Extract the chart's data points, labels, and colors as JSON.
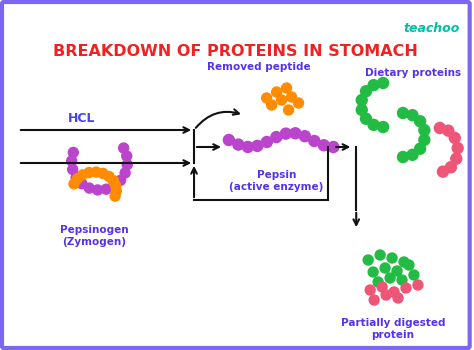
{
  "title": "BREAKDOWN OF PROTEINS IN STOMACH",
  "title_color": "#EE2222",
  "title_fontsize": 11.5,
  "brand": "teachoo",
  "brand_color": "#00BFA5",
  "background_color": "#FFFFFF",
  "border_color": "#7B68EE",
  "hcl_label": "HCL",
  "hcl_color": "#4444EE",
  "pepsinogen_label": "Pepsinogen\n(Zymogen)",
  "removed_peptide_label": "Removed peptide",
  "pepsin_label": "Pepsin\n(active enzyme)",
  "dietary_label": "Dietary proteins",
  "partial_label": "Partially digested\nprotein",
  "label_color": "#5533EE",
  "arrow_color": "#111111",
  "purple_bead": "#BB44CC",
  "orange_bead": "#FF8C00",
  "pink_bead": "#EE5577",
  "green_bead": "#22BB44"
}
